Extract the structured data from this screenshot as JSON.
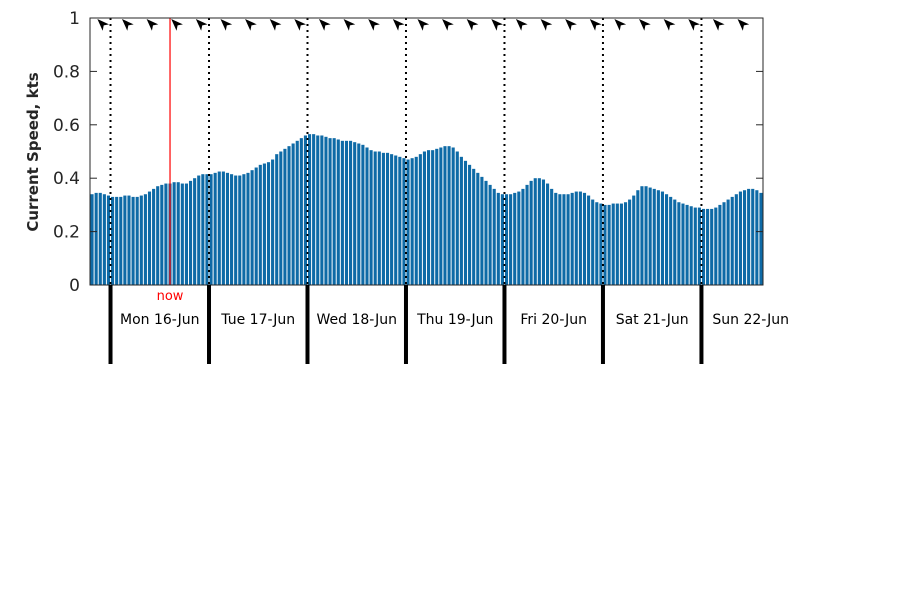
{
  "chart_data": {
    "type": "bar",
    "title": "",
    "ylabel": "Current Speed, kts",
    "ylim": [
      0,
      1
    ],
    "yticks": [
      "0",
      "0.2",
      "0.4",
      "0.6",
      "0.8",
      "1"
    ],
    "grid": false,
    "bar_color": "#0e6aa6",
    "now_color": "#ff0000",
    "now_label": "now",
    "now_hour": 14.5,
    "arrow_direction_deg": 315,
    "day_labels": [
      "Mon 16-Jun",
      "Tue 17-Jun",
      "Wed 18-Jun",
      "Thu 19-Jun",
      "Fri 20-Jun",
      "Sat 21-Jun",
      "Sun 22-Jun"
    ],
    "series": [
      {
        "start_day": "Sun 15-Jun",
        "start_hour": 19,
        "interval_hours": 1,
        "values": [
          0.34,
          0.345,
          0.345,
          0.34,
          0.335,
          0.33,
          0.33,
          0.33,
          0.335,
          0.335,
          0.33,
          0.33,
          0.335,
          0.34,
          0.35,
          0.36,
          0.37,
          0.375,
          0.38,
          0.38,
          0.385,
          0.385,
          0.38,
          0.38,
          0.39,
          0.4,
          0.41,
          0.415,
          0.415,
          0.415,
          0.42,
          0.425,
          0.425,
          0.42,
          0.415,
          0.41,
          0.41,
          0.415,
          0.42,
          0.43,
          0.44,
          0.45,
          0.455,
          0.46,
          0.47,
          0.49,
          0.5,
          0.51,
          0.52,
          0.53,
          0.54,
          0.55,
          0.56,
          0.565,
          0.565,
          0.56,
          0.56,
          0.555,
          0.55,
          0.55,
          0.545,
          0.54,
          0.54,
          0.54,
          0.535,
          0.53,
          0.525,
          0.515,
          0.505,
          0.5,
          0.5,
          0.495,
          0.495,
          0.49,
          0.485,
          0.48,
          0.475,
          0.47,
          0.475,
          0.48,
          0.49,
          0.5,
          0.505,
          0.505,
          0.51,
          0.515,
          0.52,
          0.52,
          0.515,
          0.5,
          0.48,
          0.465,
          0.45,
          0.435,
          0.42,
          0.405,
          0.39,
          0.375,
          0.36,
          0.345,
          0.34,
          0.34,
          0.34,
          0.345,
          0.35,
          0.36,
          0.375,
          0.39,
          0.4,
          0.4,
          0.395,
          0.38,
          0.36,
          0.345,
          0.34,
          0.34,
          0.34,
          0.345,
          0.35,
          0.35,
          0.345,
          0.335,
          0.32,
          0.31,
          0.305,
          0.3,
          0.3,
          0.305,
          0.305,
          0.305,
          0.31,
          0.32,
          0.335,
          0.355,
          0.37,
          0.37,
          0.365,
          0.36,
          0.355,
          0.35,
          0.34,
          0.33,
          0.32,
          0.31,
          0.305,
          0.3,
          0.295,
          0.29,
          0.29,
          0.285,
          0.285,
          0.285,
          0.29,
          0.3,
          0.31,
          0.32,
          0.33,
          0.34,
          0.35,
          0.355,
          0.36,
          0.36,
          0.355,
          0.345
        ]
      }
    ]
  }
}
